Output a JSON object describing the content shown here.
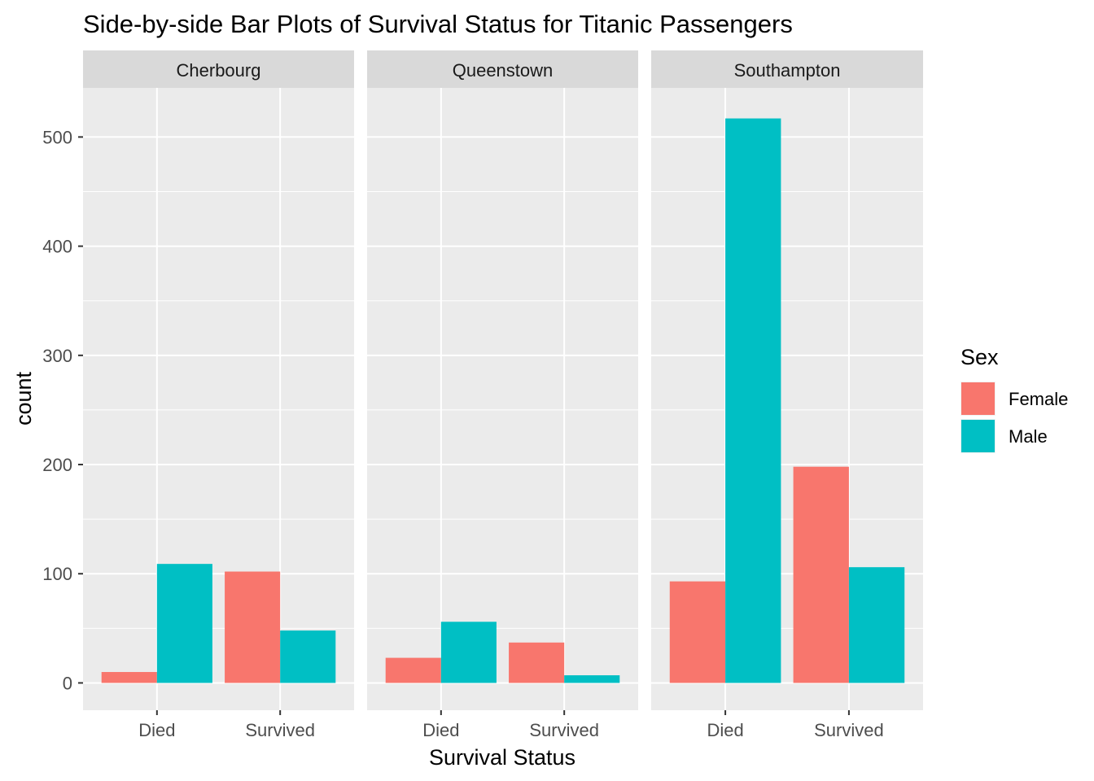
{
  "chart_data": {
    "type": "bar",
    "title": "Side-by-side Bar Plots of Survival Status for Titanic Passengers",
    "xlabel": "Survival Status",
    "ylabel": "count",
    "ylim": [
      -25,
      545
    ],
    "yticks": [
      0,
      100,
      200,
      300,
      400,
      500
    ],
    "grid": true,
    "legend": {
      "title": "Sex",
      "placement": "right",
      "entries": [
        {
          "label": "Female",
          "color": "#F8766D"
        },
        {
          "label": "Male",
          "color": "#00BFC4"
        }
      ]
    },
    "categories": [
      "Died",
      "Survived"
    ],
    "facets": [
      {
        "label": "Cherbourg",
        "series": [
          {
            "name": "Female",
            "values": [
              10,
              102
            ]
          },
          {
            "name": "Male",
            "values": [
              109,
              48
            ]
          }
        ]
      },
      {
        "label": "Queenstown",
        "series": [
          {
            "name": "Female",
            "values": [
              23,
              37
            ]
          },
          {
            "name": "Male",
            "values": [
              56,
              7
            ]
          }
        ]
      },
      {
        "label": "Southampton",
        "series": [
          {
            "name": "Female",
            "values": [
              93,
              198
            ]
          },
          {
            "name": "Male",
            "values": [
              517,
              106
            ]
          }
        ]
      }
    ]
  },
  "colors": {
    "panel_bg": "#EBEBEB",
    "strip_bg": "#D9D9D9",
    "grid_major": "#FFFFFF",
    "female": "#F8766D",
    "male": "#00BFC4"
  }
}
